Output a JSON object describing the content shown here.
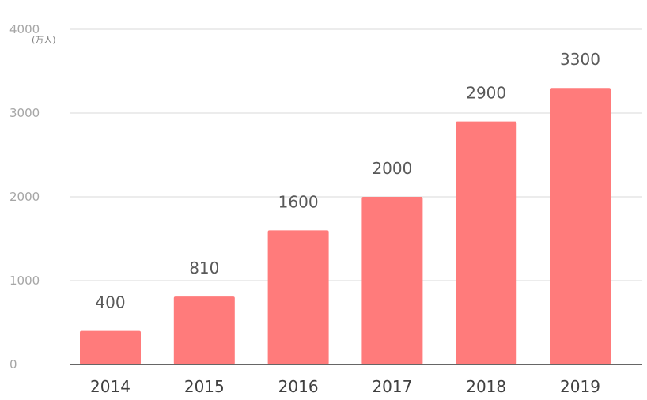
{
  "chart_data": {
    "type": "bar",
    "categories": [
      "2014",
      "2015",
      "2016",
      "2017",
      "2018",
      "2019"
    ],
    "values": [
      400,
      810,
      1600,
      2000,
      2900,
      3300
    ],
    "data_labels": [
      "400",
      "810",
      "1600",
      "2000",
      "2900",
      "3300"
    ],
    "title": "",
    "xlabel": "",
    "ylabel": "",
    "unit_label": "(万人)",
    "ylim": [
      0,
      4000
    ],
    "yticks": [
      0,
      1000,
      2000,
      3000,
      4000
    ],
    "ytick_labels": [
      "0",
      "1000",
      "2000",
      "3000",
      "4000"
    ],
    "grid": true,
    "legend": "none",
    "colors": {
      "bar": "#FF7B7B",
      "grid": "#D9D9D9",
      "axis": "#333333"
    }
  }
}
